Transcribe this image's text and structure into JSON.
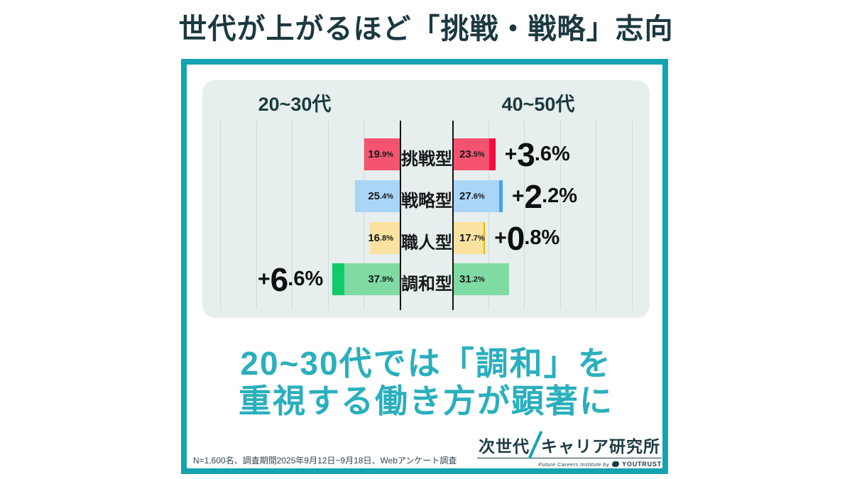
{
  "page": {
    "title": "世代が上がるほど「挑戦・戦略」志向",
    "message_line1": "20~30代では「調和」を",
    "message_line2": "重視する働き方が顕著に",
    "footnote": "N=1,600名、調査期間2025年9月12日~9月18日、Webアンケート調査"
  },
  "chart_data": {
    "type": "bar",
    "orientation": "horizontal-diverging",
    "unit": "%",
    "group_left_label": "20~30代",
    "group_right_label": "40~50代",
    "categories": [
      "挑戦型",
      "戦略型",
      "職人型",
      "調和型"
    ],
    "series": [
      {
        "name": "20~30代",
        "values": [
          19.9,
          25.4,
          16.8,
          37.9
        ]
      },
      {
        "name": "40~50代",
        "values": [
          23.5,
          27.6,
          17.7,
          31.2
        ]
      }
    ],
    "value_labels_left": [
      "19.9%",
      "25.4%",
      "16.8%",
      "37.9%"
    ],
    "value_labels_right": [
      "23.5%",
      "27.6%",
      "17.7%",
      "31.2%"
    ],
    "diff_labels": [
      "+3.6%",
      "+2.2%",
      "+0.8%",
      "+6.6%"
    ],
    "diff_values": [
      3.6,
      2.2,
      0.8,
      6.6
    ],
    "diff_side": [
      "right",
      "right",
      "right",
      "left"
    ],
    "row_colors": [
      {
        "base": "#f4546f",
        "accent": "#f70c42"
      },
      {
        "base": "#aad5f7",
        "accent": "#42a4f5"
      },
      {
        "base": "#fbe2a0",
        "accent": "#f2b400"
      },
      {
        "base": "#7fdba1",
        "accent": "#10ca6c"
      }
    ],
    "legend_position": "top",
    "grid": true
  },
  "logo": {
    "main_left": "次世代",
    "main_right": "キャリア研究所",
    "sub_text": "Future Careers Institute by",
    "brand": "YOUTRUST"
  },
  "colors": {
    "accent_teal": "#14a3b1",
    "title_dark": "#1c3940",
    "message_teal": "#2aafbd",
    "panel_bg": "#e6efed",
    "gridline": "#ccdcda",
    "text_black": "#15191c"
  }
}
